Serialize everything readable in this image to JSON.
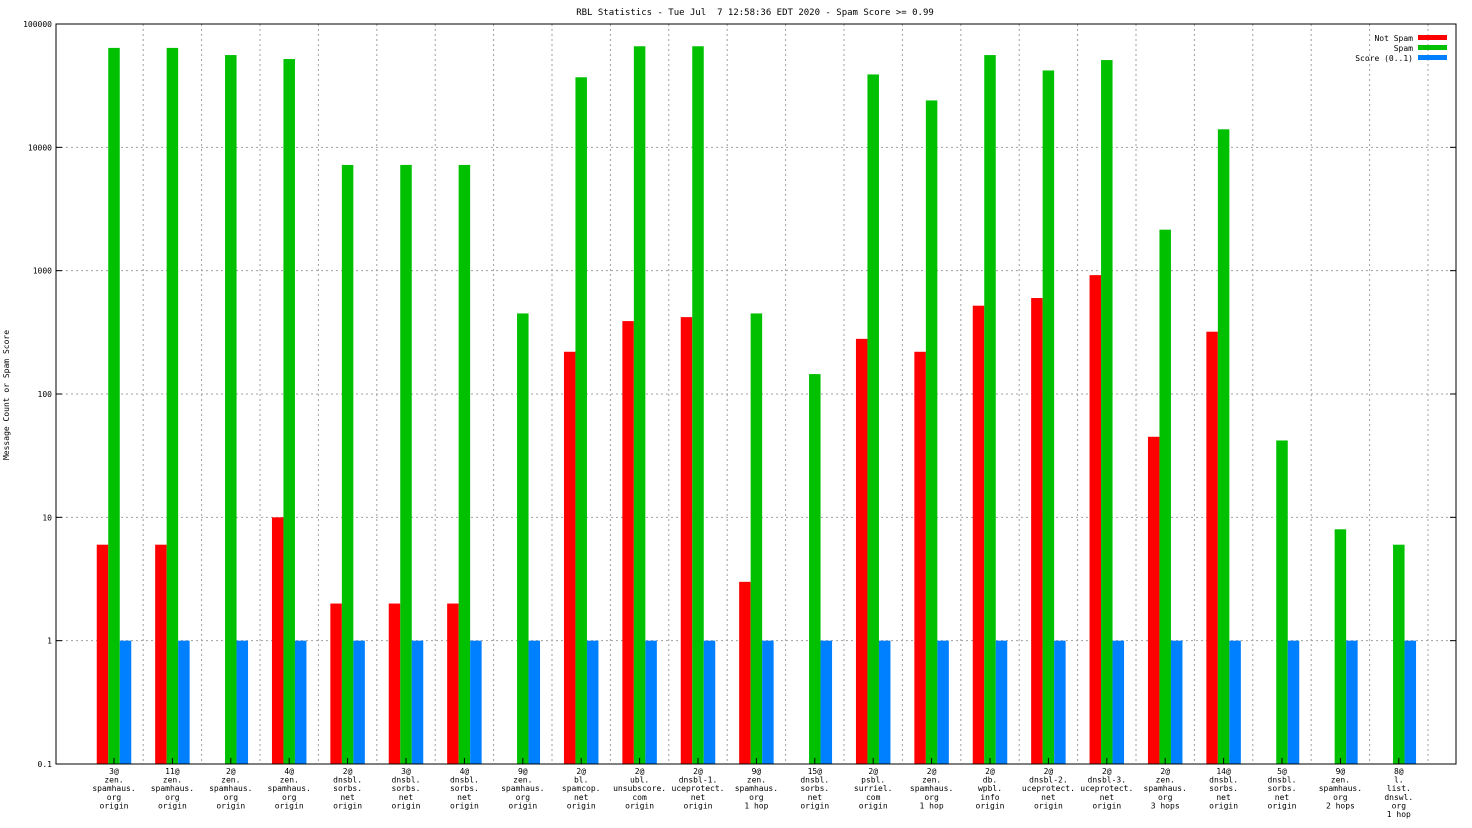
{
  "chart_data": {
    "type": "bar",
    "title": "RBL Statistics - Tue Jul  7 12:58:36 EDT 2020 - Spam Score >= 0.99",
    "ylabel": "Message Count or Spam Score",
    "xlabel": "",
    "yscale": "log",
    "ylim": [
      0.1,
      100000
    ],
    "yticks": [
      {
        "value": 0.1,
        "label": "0.1"
      },
      {
        "value": 1,
        "label": "1"
      },
      {
        "value": 10,
        "label": "10"
      },
      {
        "value": 100,
        "label": "100"
      },
      {
        "value": 1000,
        "label": "1000"
      },
      {
        "value": 10000,
        "label": "10000"
      },
      {
        "value": 100000,
        "label": "100000"
      }
    ],
    "grid": true,
    "legend_position": "top-right",
    "categories": [
      [
        "3@",
        "zen.",
        "spamhaus.",
        "org",
        "origin"
      ],
      [
        "11@",
        "zen.",
        "spamhaus.",
        "org",
        "origin"
      ],
      [
        "2@",
        "zen.",
        "spamhaus.",
        "org",
        "origin"
      ],
      [
        "4@",
        "zen.",
        "spamhaus.",
        "org",
        "origin"
      ],
      [
        "2@",
        "dnsbl.",
        "sorbs.",
        "net",
        "origin"
      ],
      [
        "3@",
        "dnsbl.",
        "sorbs.",
        "net",
        "origin"
      ],
      [
        "4@",
        "dnsbl.",
        "sorbs.",
        "net",
        "origin"
      ],
      [
        "9@",
        "zen.",
        "spamhaus.",
        "org",
        "origin"
      ],
      [
        "2@",
        "bl.",
        "spamcop.",
        "net",
        "origin"
      ],
      [
        "2@",
        "ubl.",
        "unsubscore.",
        "com",
        "origin"
      ],
      [
        "2@",
        "dnsbl-1.",
        "uceprotect.",
        "net",
        "origin"
      ],
      [
        "9@",
        "zen.",
        "spamhaus.",
        "org",
        "1 hop"
      ],
      [
        "15@",
        "dnsbl.",
        "sorbs.",
        "net",
        "origin"
      ],
      [
        "2@",
        "psbl.",
        "surriel.",
        "com",
        "origin"
      ],
      [
        "2@",
        "zen.",
        "spamhaus.",
        "org",
        "1 hop"
      ],
      [
        "2@",
        "db.",
        "wpbl.",
        "info",
        "origin"
      ],
      [
        "2@",
        "dnsbl-2.",
        "uceprotect.",
        "net",
        "origin"
      ],
      [
        "2@",
        "dnsbl-3.",
        "uceprotect.",
        "net",
        "origin"
      ],
      [
        "2@",
        "zen.",
        "spamhaus.",
        "org",
        "3 hops"
      ],
      [
        "14@",
        "dnsbl.",
        "sorbs.",
        "net",
        "origin"
      ],
      [
        "5@",
        "dnsbl.",
        "sorbs.",
        "net",
        "origin"
      ],
      [
        "9@",
        "zen.",
        "spamhaus.",
        "org",
        "2 hops"
      ],
      [
        "8@",
        "l.",
        "list.",
        "dnswl.",
        "org",
        "1 hop"
      ]
    ],
    "series": [
      {
        "name": "Not Spam",
        "color": "#ff0000",
        "values": [
          6,
          6,
          0,
          10,
          2,
          2,
          2,
          0,
          220,
          390,
          420,
          3,
          0,
          280,
          220,
          520,
          600,
          920,
          45,
          320,
          0,
          0,
          0
        ]
      },
      {
        "name": "Spam",
        "color": "#00c000",
        "values": [
          64000,
          64000,
          56000,
          52000,
          7200,
          7200,
          7200,
          450,
          37000,
          66000,
          66000,
          450,
          145,
          39000,
          24000,
          56000,
          42000,
          51000,
          2150,
          14000,
          42,
          8,
          6
        ]
      },
      {
        "name": "Score (0..1)",
        "color": "#0080ff",
        "values": [
          1,
          1,
          1,
          1,
          1,
          1,
          1,
          1,
          1,
          1,
          1,
          1,
          1,
          1,
          1,
          1,
          1,
          1,
          1,
          1,
          1,
          1,
          1
        ]
      }
    ]
  }
}
